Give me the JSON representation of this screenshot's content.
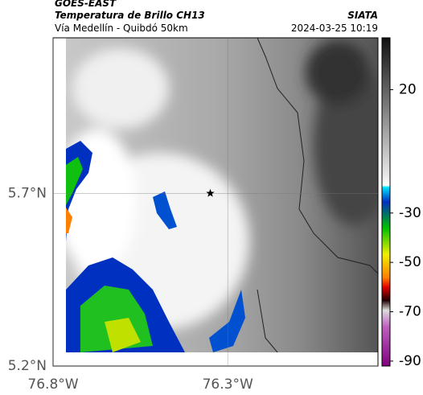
{
  "header": {
    "satellite": "GOES-EAST",
    "product": "Temperatura de Brillo CH13",
    "region": "Vía Medellín - Quibdó 50km",
    "source": "SIATA",
    "datetime": "2024-03-25 10:19"
  },
  "map": {
    "xlim": [
      -76.8,
      -75.87
    ],
    "ylim": [
      5.2,
      6.15
    ],
    "xticks": [
      {
        "value": -76.8,
        "label": "76.8°W"
      },
      {
        "value": -76.3,
        "label": "76.3°W"
      }
    ],
    "yticks": [
      {
        "value": 5.7,
        "label": "5.7°N"
      },
      {
        "value": 5.2,
        "label": "5.2°N"
      }
    ],
    "grid": true,
    "marker": {
      "lon": -76.35,
      "lat": 5.7
    }
  },
  "colorbar": {
    "range": [
      -92,
      41
    ],
    "ticks": [
      20,
      -30,
      -50,
      -70,
      -90
    ]
  }
}
